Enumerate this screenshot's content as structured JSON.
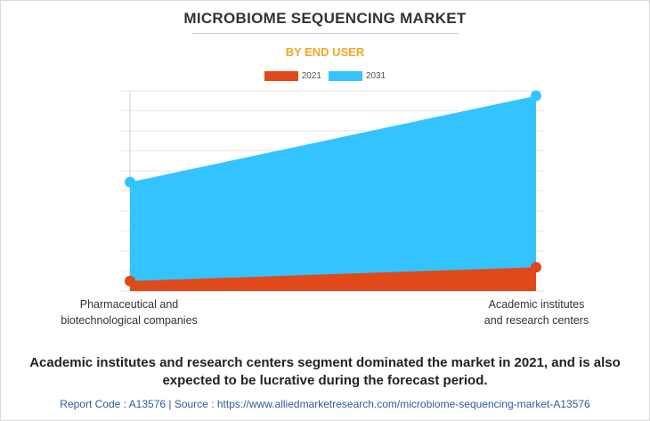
{
  "title": "MICROBIOME SEQUENCING MARKET",
  "subtitle": "BY END USER",
  "colors": {
    "s2021": "#e0491a",
    "s2031": "#33c4ff",
    "subtitle": "#f5a623",
    "source": "#2e5c9a"
  },
  "chart_data": {
    "type": "area",
    "categories": [
      "Pharmaceutical and biotechnological companies",
      "Academic institutes and research centers"
    ],
    "series": [
      {
        "name": "2021",
        "values": [
          0.08,
          0.19
        ]
      },
      {
        "name": "2031",
        "values": [
          0.87,
          1.56
        ]
      }
    ],
    "ylim": [
      0,
      1.6
    ],
    "grid": true,
    "legend": "top-center"
  },
  "category_labels": {
    "left_line1": "Pharmaceutical and",
    "left_line2": "biotechnological companies",
    "right_line1": "Academic institutes",
    "right_line2": "and research centers"
  },
  "note": "Academic institutes and research centers segment dominated the market in 2021, and is also expected to be lucrative during the forecast period.",
  "source": "Report Code : A13576  |  Source : https://www.alliedmarketresearch.com/microbiome-sequencing-market-A13576"
}
